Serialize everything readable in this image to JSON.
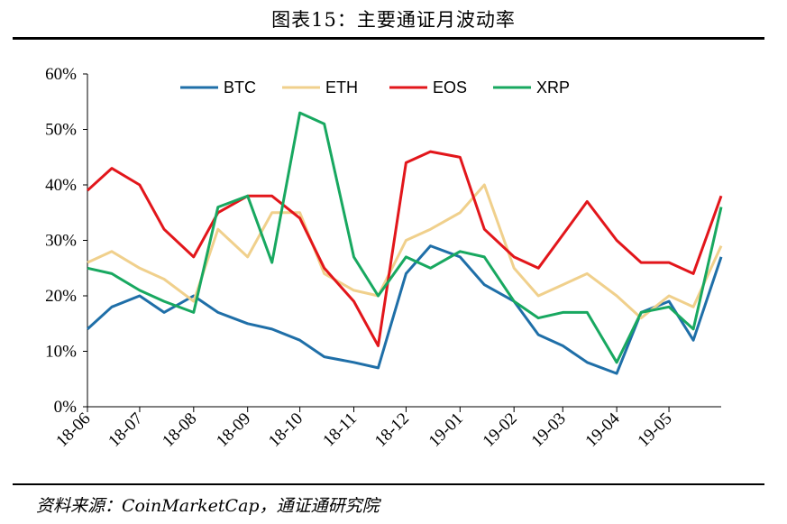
{
  "title": "图表15：主要通证月波动率",
  "source": "资料来源：CoinMarketCap，通证通研究院",
  "chart_data": {
    "type": "line",
    "ylim": [
      0,
      60
    ],
    "yticks": [
      "0%",
      "10%",
      "20%",
      "30%",
      "40%",
      "50%",
      "60%"
    ],
    "xticks": [
      "18-06",
      "18-07",
      "18-08",
      "18-09",
      "18-10",
      "18-11",
      "18-12",
      "19-01",
      "19-02",
      "19-03",
      "19-04",
      "19-05"
    ],
    "x": [
      "18-06-01",
      "18-06-15",
      "18-07-01",
      "18-07-15",
      "18-08-01",
      "18-08-15",
      "18-09-01",
      "18-09-15",
      "18-10-01",
      "18-10-15",
      "18-11-01",
      "18-11-15",
      "18-12-01",
      "18-12-15",
      "19-01-01",
      "19-01-15",
      "19-02-01",
      "19-02-15",
      "19-03-01",
      "19-03-15",
      "19-04-01",
      "19-04-15",
      "19-05-01",
      "19-05-15",
      "19-05-31"
    ],
    "legend_position": "top",
    "series": [
      {
        "name": "BTC",
        "color": "#1f6fa8",
        "values": [
          14,
          18,
          20,
          17,
          20,
          17,
          15,
          14,
          12,
          9,
          8,
          7,
          24,
          29,
          27,
          22,
          19,
          13,
          11,
          8,
          6,
          17,
          19,
          12,
          27
        ]
      },
      {
        "name": "ETH",
        "color": "#f0d08c",
        "values": [
          26,
          28,
          25,
          23,
          19,
          32,
          27,
          35,
          35,
          24,
          21,
          20,
          30,
          32,
          35,
          40,
          25,
          20,
          22,
          24,
          20,
          16,
          20,
          18,
          29
        ]
      },
      {
        "name": "EOS",
        "color": "#e2161b",
        "values": [
          39,
          43,
          40,
          32,
          27,
          35,
          38,
          38,
          34,
          25,
          19,
          11,
          44,
          46,
          45,
          32,
          27,
          25,
          31,
          37,
          30,
          26,
          26,
          24,
          38
        ]
      },
      {
        "name": "XRP",
        "color": "#18a860",
        "values": [
          25,
          24,
          21,
          19,
          17,
          36,
          38,
          26,
          53,
          51,
          27,
          20,
          27,
          25,
          28,
          27,
          19,
          16,
          17,
          17,
          8,
          17,
          18,
          14,
          36
        ]
      }
    ]
  }
}
